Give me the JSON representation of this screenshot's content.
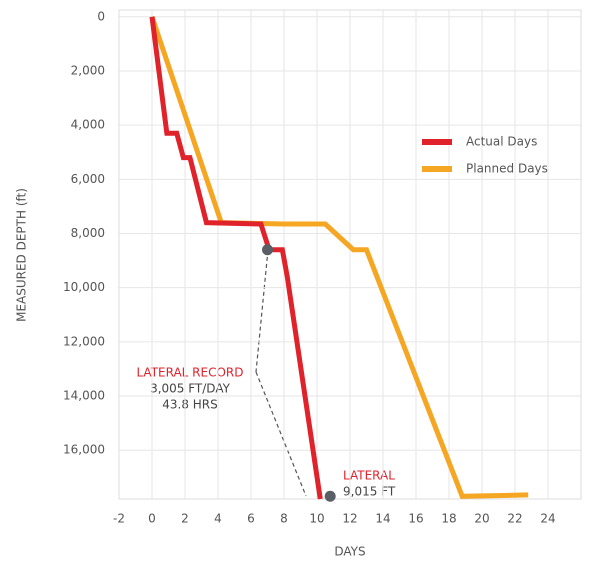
{
  "chart_data": {
    "type": "line",
    "x_label": "DAYS",
    "y_label": "MEASURED DEPTH (ft)",
    "xlim": [
      -2,
      26
    ],
    "ylim": [
      -250,
      17800
    ],
    "y_inverted": true,
    "grid": true,
    "xticks": [
      -2,
      0,
      2,
      4,
      6,
      8,
      10,
      12,
      14,
      16,
      18,
      20,
      22,
      24
    ],
    "yticks": [
      0,
      {
        "value": 2000,
        "label": "2,000"
      },
      {
        "value": 4000,
        "label": "4,000"
      },
      {
        "value": 6000,
        "label": "6,000"
      },
      {
        "value": 8000,
        "label": "8,000"
      },
      {
        "value": 10000,
        "label": "10,000"
      },
      {
        "value": 12000,
        "label": "12,000"
      },
      {
        "value": 14000,
        "label": "14,000"
      },
      {
        "value": 16000,
        "label": "16,000"
      }
    ],
    "series": [
      {
        "name": "Planned Days",
        "color": "#f5a623",
        "x": [
          0,
          4.2,
          8,
          10.5,
          12.2,
          13,
          18.8,
          22.8
        ],
        "y": [
          0,
          7600,
          7650,
          7650,
          8600,
          8600,
          17700,
          17650
        ]
      },
      {
        "name": "Actual Days",
        "color": "#e0222b",
        "x": [
          0,
          0.9,
          1.5,
          1.9,
          2.3,
          3.3,
          6.6,
          7.1,
          7.9,
          8.2,
          10.2
        ],
        "y": [
          0,
          4300,
          4300,
          5200,
          5200,
          7600,
          7650,
          8600,
          8600,
          9600,
          17800
        ]
      }
    ],
    "markers": {
      "color": "#5a5f66",
      "x": [
        7,
        10.8
      ],
      "y": [
        8600,
        17700
      ]
    },
    "annotations": [
      {
        "lines": [
          "LATERAL RECORD",
          "3,005 FT/DAY",
          "43.8 HRS"
        ]
      },
      {
        "lines": [
          "LATERAL",
          "9,015 FT"
        ]
      }
    ]
  }
}
